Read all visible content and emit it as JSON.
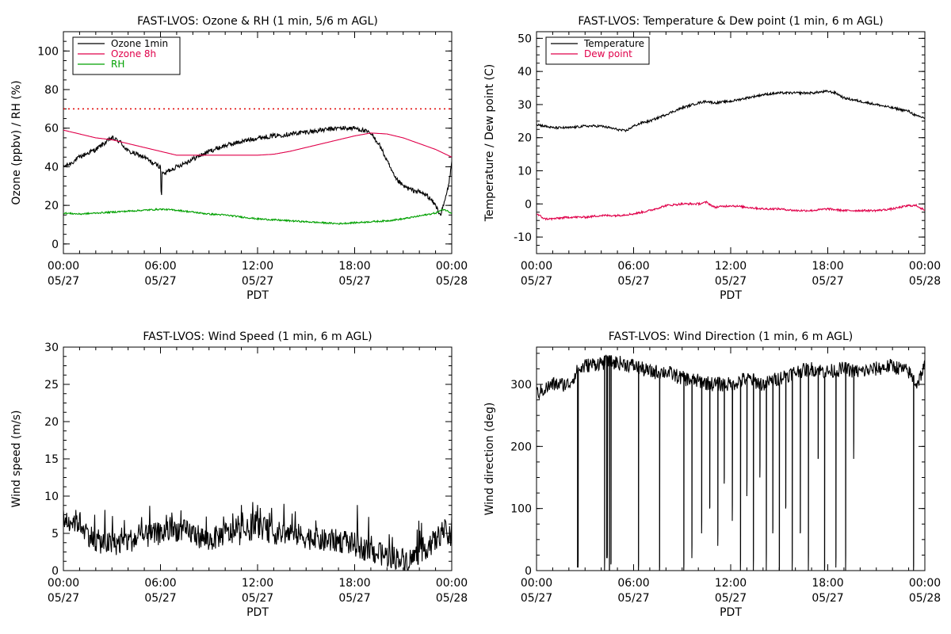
{
  "chart_data": [
    {
      "type": "line",
      "title": "FAST-LVOS: Ozone & RH (1 min, 5/6 m AGL)",
      "xlabel": "PDT",
      "ylabel": "Ozone (ppbv) / RH (%)",
      "xlim": [
        0,
        24
      ],
      "ylim": [
        -5,
        110
      ],
      "yticks": [
        0,
        20,
        40,
        60,
        80,
        100
      ],
      "xticks": [
        {
          "value": 0,
          "time": "00:00",
          "date": "05/27"
        },
        {
          "value": 6,
          "time": "06:00",
          "date": "05/27"
        },
        {
          "value": 12,
          "time": "12:00",
          "date": "05/27"
        },
        {
          "value": 18,
          "time": "18:00",
          "date": "05/27"
        },
        {
          "value": 24,
          "time": "00:00",
          "date": "05/28"
        }
      ],
      "legend": "top-left",
      "reference_line": {
        "y": 70,
        "color": "#e00000",
        "style": "dotted"
      },
      "series": [
        {
          "name": "Ozone 1min",
          "color": "#000000",
          "noise": 1.2,
          "x": [
            0,
            0.5,
            1,
            2,
            2.5,
            3,
            3.5,
            4,
            5,
            5.5,
            6,
            6.05,
            6.1,
            6.2,
            6.5,
            7,
            7.5,
            8,
            9,
            10,
            11,
            12,
            13,
            14,
            15,
            16,
            17,
            18,
            18.5,
            19,
            19.5,
            20,
            20.5,
            21,
            21.5,
            22,
            22.5,
            23,
            23.3,
            23.5,
            23.8,
            24
          ],
          "y": [
            40,
            42,
            45,
            49,
            52,
            55,
            53,
            48,
            45,
            42,
            40,
            20,
            38,
            36,
            38,
            40,
            42,
            44,
            48,
            51,
            53,
            55,
            56,
            57,
            58,
            59,
            60,
            60,
            59,
            57,
            52,
            43,
            34,
            30,
            28,
            27,
            25,
            20,
            15,
            20,
            30,
            42
          ]
        },
        {
          "name": "Ozone 8h",
          "color": "#e0004a",
          "noise": 0,
          "x": [
            0,
            1,
            2,
            3,
            4,
            5,
            6,
            7,
            8,
            9,
            10,
            11,
            12,
            13,
            14,
            15,
            16,
            17,
            18,
            19,
            20,
            21,
            22,
            23,
            24
          ],
          "y": [
            59,
            57,
            55,
            54,
            52,
            50,
            48,
            46,
            46,
            46,
            46,
            46,
            46,
            46.5,
            48,
            50,
            52,
            54,
            56,
            57.5,
            57,
            55,
            52,
            49,
            45
          ]
        },
        {
          "name": "RH",
          "color": "#00a000",
          "noise": 0.4,
          "x": [
            0,
            1,
            2,
            3,
            4,
            5,
            6,
            7,
            8,
            9,
            10,
            11,
            12,
            13,
            14,
            15,
            16,
            17,
            18,
            19,
            20,
            21,
            22,
            23,
            23.5,
            24
          ],
          "y": [
            16,
            15.5,
            16,
            16.5,
            17,
            17.5,
            18,
            17.5,
            16.5,
            15.5,
            15,
            14,
            13,
            12.5,
            12,
            11.5,
            11,
            10.5,
            11,
            11.5,
            12,
            13,
            14.5,
            16,
            18,
            16
          ]
        }
      ]
    },
    {
      "type": "line",
      "title": "FAST-LVOS: Temperature & Dew point (1 min, 6 m AGL)",
      "xlabel": "PDT",
      "ylabel": "Temperature / Dew point (C)",
      "xlim": [
        0,
        24
      ],
      "ylim": [
        -15,
        52
      ],
      "yticks": [
        -10,
        0,
        10,
        20,
        30,
        40,
        50
      ],
      "xticks": [
        {
          "value": 0,
          "time": "00:00",
          "date": "05/27"
        },
        {
          "value": 6,
          "time": "06:00",
          "date": "05/27"
        },
        {
          "value": 12,
          "time": "12:00",
          "date": "05/27"
        },
        {
          "value": 18,
          "time": "18:00",
          "date": "05/27"
        },
        {
          "value": 24,
          "time": "00:00",
          "date": "05/28"
        }
      ],
      "legend": "top-left",
      "series": [
        {
          "name": "Temperature",
          "color": "#000000",
          "noise": 0.35,
          "x": [
            0,
            1,
            2,
            3,
            4,
            5,
            5.5,
            6,
            6.5,
            7,
            8,
            9,
            10,
            10.5,
            11,
            12,
            13,
            14,
            15,
            16,
            17,
            18,
            18.5,
            19,
            20,
            21,
            22,
            23,
            23.5,
            24
          ],
          "y": [
            24,
            23,
            23,
            23.5,
            23.5,
            22.5,
            22,
            23.5,
            24.5,
            25,
            27,
            29,
            30.5,
            31,
            30.5,
            31,
            32,
            33,
            33.5,
            33.5,
            33.5,
            34,
            33.5,
            32,
            31,
            30,
            29,
            28,
            26.5,
            26
          ]
        },
        {
          "name": "Dew point",
          "color": "#e0004a",
          "noise": 0.3,
          "x": [
            0,
            0.5,
            1,
            2,
            3,
            4,
            5,
            6,
            7,
            8,
            9,
            10,
            10.5,
            11,
            12,
            13,
            14,
            15,
            16,
            17,
            18,
            19,
            20,
            21,
            22,
            23,
            23.5,
            24
          ],
          "y": [
            -3,
            -4.5,
            -4.5,
            -4,
            -4,
            -3.5,
            -3.5,
            -3,
            -2,
            -0.5,
            0,
            0,
            0.5,
            -1,
            -0.5,
            -1,
            -1.5,
            -1.5,
            -2,
            -2,
            -1.5,
            -2,
            -2,
            -2,
            -1.5,
            -0.5,
            -0.5,
            -2
          ]
        }
      ]
    },
    {
      "type": "line",
      "title": "FAST-LVOS: Wind Speed (1 min, 6 m AGL)",
      "xlabel": "PDT",
      "ylabel": "Wind speed (m/s)",
      "xlim": [
        0,
        24
      ],
      "ylim": [
        0,
        30
      ],
      "yticks": [
        0,
        5,
        10,
        15,
        20,
        25,
        30
      ],
      "xticks": [
        {
          "value": 0,
          "time": "00:00",
          "date": "05/27"
        },
        {
          "value": 6,
          "time": "06:00",
          "date": "05/27"
        },
        {
          "value": 12,
          "time": "12:00",
          "date": "05/27"
        },
        {
          "value": 18,
          "time": "18:00",
          "date": "05/27"
        },
        {
          "value": 24,
          "time": "00:00",
          "date": "05/28"
        }
      ],
      "series": [
        {
          "name": "",
          "color": "#000000",
          "noise": 1.6,
          "x": [
            0,
            1,
            1.5,
            2,
            3,
            4,
            5,
            6,
            7,
            8,
            9,
            10,
            11,
            12,
            13,
            14,
            15,
            16,
            17,
            18,
            19,
            20,
            21,
            21.5,
            22,
            23,
            23.5,
            24
          ],
          "y": [
            7,
            6.5,
            5,
            4,
            3.5,
            4,
            4.5,
            5,
            5.5,
            5,
            4,
            5,
            5,
            6,
            5,
            5,
            4.5,
            4,
            4,
            3.5,
            2.5,
            2,
            1.5,
            1.5,
            2.5,
            4,
            5.5,
            4
          ]
        }
      ]
    },
    {
      "type": "line",
      "title": "FAST-LVOS: Wind Direction (1 min, 6 m AGL)",
      "xlabel": "PDT",
      "ylabel": "Wind direction (deg)",
      "xlim": [
        0,
        24
      ],
      "ylim": [
        0,
        360
      ],
      "yticks": [
        0,
        100,
        200,
        300
      ],
      "xticks": [
        {
          "value": 0,
          "time": "00:00",
          "date": "05/27"
        },
        {
          "value": 6,
          "time": "06:00",
          "date": "05/27"
        },
        {
          "value": 12,
          "time": "12:00",
          "date": "05/27"
        },
        {
          "value": 18,
          "time": "18:00",
          "date": "05/27"
        },
        {
          "value": 24,
          "time": "00:00",
          "date": "05/28"
        }
      ],
      "series": [
        {
          "name": "",
          "color": "#000000",
          "noise": 12,
          "x": [
            0,
            1,
            2,
            2.5,
            3,
            4,
            5,
            6,
            7,
            8,
            9,
            10,
            11,
            12,
            13,
            14,
            15,
            16,
            17,
            18,
            19,
            20,
            21,
            22,
            23,
            23.5,
            24
          ],
          "y": [
            285,
            300,
            300,
            320,
            330,
            335,
            335,
            330,
            320,
            320,
            310,
            305,
            300,
            300,
            310,
            300,
            310,
            320,
            325,
            320,
            325,
            320,
            325,
            330,
            320,
            300,
            330
          ]
        }
      ],
      "wrap_drops": [
        {
          "x": 2.55,
          "y": 5
        },
        {
          "x": 4.2,
          "y": 0
        },
        {
          "x": 4.35,
          "y": 20
        },
        {
          "x": 4.5,
          "y": 0
        },
        {
          "x": 4.6,
          "y": 10
        },
        {
          "x": 6.3,
          "y": 0
        },
        {
          "x": 7.6,
          "y": 0
        },
        {
          "x": 9.1,
          "y": 0
        },
        {
          "x": 9.6,
          "y": 20
        },
        {
          "x": 10.2,
          "y": 60
        },
        {
          "x": 10.7,
          "y": 100
        },
        {
          "x": 11.2,
          "y": 40
        },
        {
          "x": 11.6,
          "y": 140
        },
        {
          "x": 12.1,
          "y": 80
        },
        {
          "x": 12.6,
          "y": 0
        },
        {
          "x": 13.0,
          "y": 120
        },
        {
          "x": 13.4,
          "y": 0
        },
        {
          "x": 13.8,
          "y": 150
        },
        {
          "x": 14.2,
          "y": 0
        },
        {
          "x": 14.6,
          "y": 60
        },
        {
          "x": 15.0,
          "y": 0
        },
        {
          "x": 15.4,
          "y": 100
        },
        {
          "x": 15.8,
          "y": 0
        },
        {
          "x": 16.3,
          "y": 60
        },
        {
          "x": 16.8,
          "y": 0
        },
        {
          "x": 17.4,
          "y": 180
        },
        {
          "x": 17.8,
          "y": 0
        },
        {
          "x": 18.5,
          "y": 5
        },
        {
          "x": 19.1,
          "y": 0
        },
        {
          "x": 19.6,
          "y": 180
        },
        {
          "x": 23.3,
          "y": 0
        }
      ]
    }
  ]
}
